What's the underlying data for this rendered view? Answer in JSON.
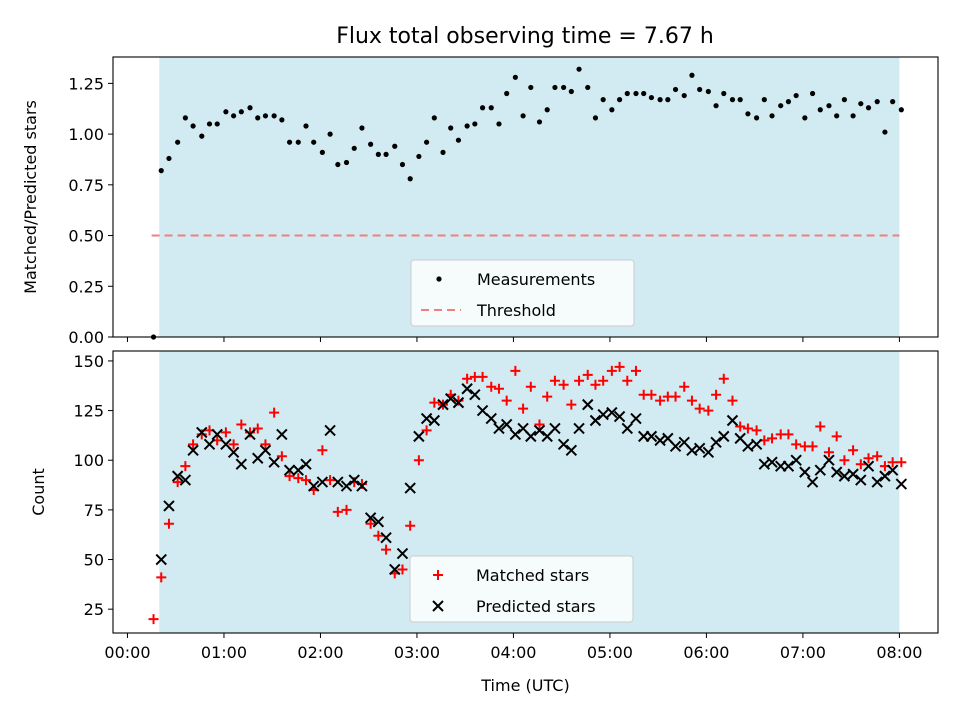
{
  "title": "Flux total observing time = 7.67 h",
  "colors": {
    "shade": "#add8e6",
    "measurement": "#000000",
    "threshold": "#f08080",
    "matched": "#ff0000",
    "predicted": "#000000"
  },
  "chart_data": [
    {
      "type": "scatter",
      "ylabel": "Matched/Predicted stars",
      "x_unit": "hours (UTC)",
      "xlim": [
        -0.15,
        8.4
      ],
      "ylim": [
        0,
        1.38
      ],
      "yticks": [
        0.0,
        0.25,
        0.5,
        0.75,
        1.0,
        1.25
      ],
      "ytick_labels": [
        "0.00",
        "0.25",
        "0.50",
        "0.75",
        "1.00",
        "1.25"
      ],
      "xticks_shown_labels": false,
      "shaded_span": [
        0.33,
        8.0
      ],
      "legend": {
        "position": "lower center",
        "entries": [
          "Measurements",
          "Threshold"
        ]
      },
      "threshold": {
        "name": "Threshold",
        "value": 0.5,
        "x_range": [
          0.25,
          8.0
        ],
        "style": "dashed"
      },
      "series": [
        {
          "name": "Measurements",
          "marker": "dot",
          "x": [
            0.27,
            0.35,
            0.43,
            0.52,
            0.6,
            0.68,
            0.77,
            0.85,
            0.93,
            1.02,
            1.1,
            1.18,
            1.27,
            1.35,
            1.43,
            1.52,
            1.6,
            1.68,
            1.77,
            1.85,
            1.93,
            2.02,
            2.1,
            2.18,
            2.27,
            2.35,
            2.43,
            2.52,
            2.6,
            2.68,
            2.77,
            2.85,
            2.93,
            3.02,
            3.1,
            3.18,
            3.27,
            3.35,
            3.43,
            3.52,
            3.6,
            3.68,
            3.77,
            3.85,
            3.93,
            4.02,
            4.1,
            4.18,
            4.27,
            4.35,
            4.43,
            4.52,
            4.6,
            4.68,
            4.77,
            4.85,
            4.93,
            5.02,
            5.1,
            5.18,
            5.27,
            5.35,
            5.43,
            5.52,
            5.6,
            5.68,
            5.77,
            5.85,
            5.93,
            6.02,
            6.1,
            6.18,
            6.27,
            6.35,
            6.43,
            6.52,
            6.6,
            6.68,
            6.77,
            6.85,
            6.93,
            7.02,
            7.1,
            7.18,
            7.27,
            7.35,
            7.43,
            7.52,
            7.6,
            7.68,
            7.77,
            7.85,
            7.93,
            8.02
          ],
          "y": [
            0.0,
            0.82,
            0.88,
            0.96,
            1.08,
            1.04,
            0.99,
            1.05,
            1.05,
            1.11,
            1.09,
            1.11,
            1.13,
            1.08,
            1.09,
            1.09,
            1.07,
            0.96,
            0.96,
            1.04,
            0.96,
            0.91,
            1.0,
            0.85,
            0.86,
            0.93,
            1.03,
            0.95,
            0.9,
            0.9,
            0.94,
            0.85,
            0.78,
            0.89,
            0.96,
            1.08,
            0.91,
            1.03,
            0.97,
            1.04,
            1.05,
            1.13,
            1.13,
            1.05,
            1.2,
            1.28,
            1.09,
            1.23,
            1.06,
            1.12,
            1.23,
            1.23,
            1.21,
            1.32,
            1.23,
            1.08,
            1.17,
            1.12,
            1.17,
            1.2,
            1.2,
            1.2,
            1.18,
            1.17,
            1.17,
            1.22,
            1.19,
            1.29,
            1.22,
            1.21,
            1.14,
            1.2,
            1.17,
            1.17,
            1.1,
            1.08,
            1.17,
            1.09,
            1.14,
            1.16,
            1.19,
            1.08,
            1.2,
            1.12,
            1.14,
            1.09,
            1.17,
            1.09,
            1.15,
            1.13,
            1.16,
            1.01,
            1.16,
            1.12
          ]
        }
      ]
    },
    {
      "type": "scatter",
      "xlabel": "Time (UTC)",
      "ylabel": "Count",
      "x_unit": "hours (UTC)",
      "xlim": [
        -0.15,
        8.4
      ],
      "ylim": [
        13,
        155
      ],
      "xticks": [
        0,
        1,
        2,
        3,
        4,
        5,
        6,
        7,
        8
      ],
      "xtick_labels": [
        "00:00",
        "01:00",
        "02:00",
        "03:00",
        "04:00",
        "05:00",
        "06:00",
        "07:00",
        "08:00"
      ],
      "yticks": [
        25,
        50,
        75,
        100,
        125,
        150
      ],
      "ytick_labels": [
        "25",
        "50",
        "75",
        "100",
        "125",
        "150"
      ],
      "shaded_span": [
        0.33,
        8.0
      ],
      "legend": {
        "position": "lower center",
        "entries": [
          "Matched stars",
          "Predicted stars"
        ]
      },
      "series": [
        {
          "name": "Matched stars",
          "marker": "plus",
          "x": [
            0.27,
            0.35,
            0.43,
            0.52,
            0.6,
            0.68,
            0.77,
            0.85,
            0.93,
            1.02,
            1.1,
            1.18,
            1.27,
            1.35,
            1.43,
            1.52,
            1.6,
            1.68,
            1.77,
            1.85,
            1.93,
            2.02,
            2.1,
            2.18,
            2.27,
            2.35,
            2.43,
            2.52,
            2.6,
            2.68,
            2.77,
            2.85,
            2.93,
            3.02,
            3.1,
            3.18,
            3.27,
            3.35,
            3.43,
            3.52,
            3.6,
            3.68,
            3.77,
            3.85,
            3.93,
            4.02,
            4.1,
            4.18,
            4.27,
            4.35,
            4.43,
            4.52,
            4.6,
            4.68,
            4.77,
            4.85,
            4.93,
            5.02,
            5.1,
            5.18,
            5.27,
            5.35,
            5.43,
            5.52,
            5.6,
            5.68,
            5.77,
            5.85,
            5.93,
            6.02,
            6.1,
            6.18,
            6.27,
            6.35,
            6.43,
            6.52,
            6.6,
            6.68,
            6.77,
            6.85,
            6.93,
            7.02,
            7.1,
            7.18,
            7.27,
            7.35,
            7.43,
            7.52,
            7.6,
            7.68,
            7.77,
            7.85,
            7.93,
            8.02
          ],
          "y": [
            20,
            41,
            68,
            89,
            97,
            108,
            113,
            115,
            110,
            114,
            108,
            118,
            114,
            116,
            108,
            124,
            102,
            92,
            91,
            90,
            85,
            105,
            90,
            74,
            75,
            89,
            88,
            68,
            62,
            55,
            43,
            45,
            67,
            100,
            115,
            129,
            128,
            133,
            130,
            141,
            142,
            142,
            137,
            136,
            130,
            145,
            126,
            137,
            118,
            132,
            140,
            138,
            128,
            140,
            143,
            138,
            140,
            145,
            147,
            140,
            145,
            133,
            133,
            130,
            132,
            132,
            137,
            130,
            126,
            125,
            133,
            141,
            130,
            117,
            116,
            115,
            110,
            111,
            113,
            113,
            108,
            107,
            107,
            117,
            104,
            112,
            100,
            105,
            98,
            101,
            102,
            97,
            99,
            99
          ]
        },
        {
          "name": "Predicted stars",
          "marker": "x",
          "x": [
            0.35,
            0.43,
            0.52,
            0.6,
            0.68,
            0.77,
            0.85,
            0.93,
            1.02,
            1.1,
            1.18,
            1.27,
            1.35,
            1.43,
            1.52,
            1.6,
            1.68,
            1.77,
            1.85,
            1.93,
            2.02,
            2.1,
            2.18,
            2.27,
            2.35,
            2.43,
            2.52,
            2.6,
            2.68,
            2.77,
            2.85,
            2.93,
            3.02,
            3.1,
            3.18,
            3.27,
            3.35,
            3.43,
            3.52,
            3.6,
            3.68,
            3.77,
            3.85,
            3.93,
            4.02,
            4.1,
            4.18,
            4.27,
            4.35,
            4.43,
            4.52,
            4.6,
            4.68,
            4.77,
            4.85,
            4.93,
            5.02,
            5.1,
            5.18,
            5.27,
            5.35,
            5.43,
            5.52,
            5.6,
            5.68,
            5.77,
            5.85,
            5.93,
            6.02,
            6.1,
            6.18,
            6.27,
            6.35,
            6.43,
            6.52,
            6.6,
            6.68,
            6.77,
            6.85,
            6.93,
            7.02,
            7.1,
            7.18,
            7.27,
            7.35,
            7.43,
            7.52,
            7.6,
            7.68,
            7.77,
            7.85,
            7.93,
            8.02
          ],
          "y": [
            50,
            77,
            92,
            90,
            105,
            114,
            108,
            113,
            108,
            104,
            98,
            113,
            101,
            105,
            99,
            113,
            95,
            95,
            98,
            87,
            89,
            115,
            89,
            87,
            90,
            87,
            71,
            69,
            61,
            45,
            53,
            86,
            112,
            121,
            120,
            128,
            131,
            129,
            136,
            133,
            125,
            121,
            116,
            118,
            113,
            116,
            112,
            115,
            112,
            116,
            108,
            105,
            116,
            128,
            120,
            123,
            124,
            122,
            116,
            121,
            112,
            112,
            110,
            111,
            107,
            109,
            105,
            106,
            104,
            109,
            112,
            120,
            111,
            107,
            108,
            98,
            99,
            97,
            97,
            100,
            94,
            89,
            95,
            100,
            94,
            92,
            93,
            90,
            97,
            89,
            92,
            95,
            88
          ]
        }
      ]
    }
  ]
}
